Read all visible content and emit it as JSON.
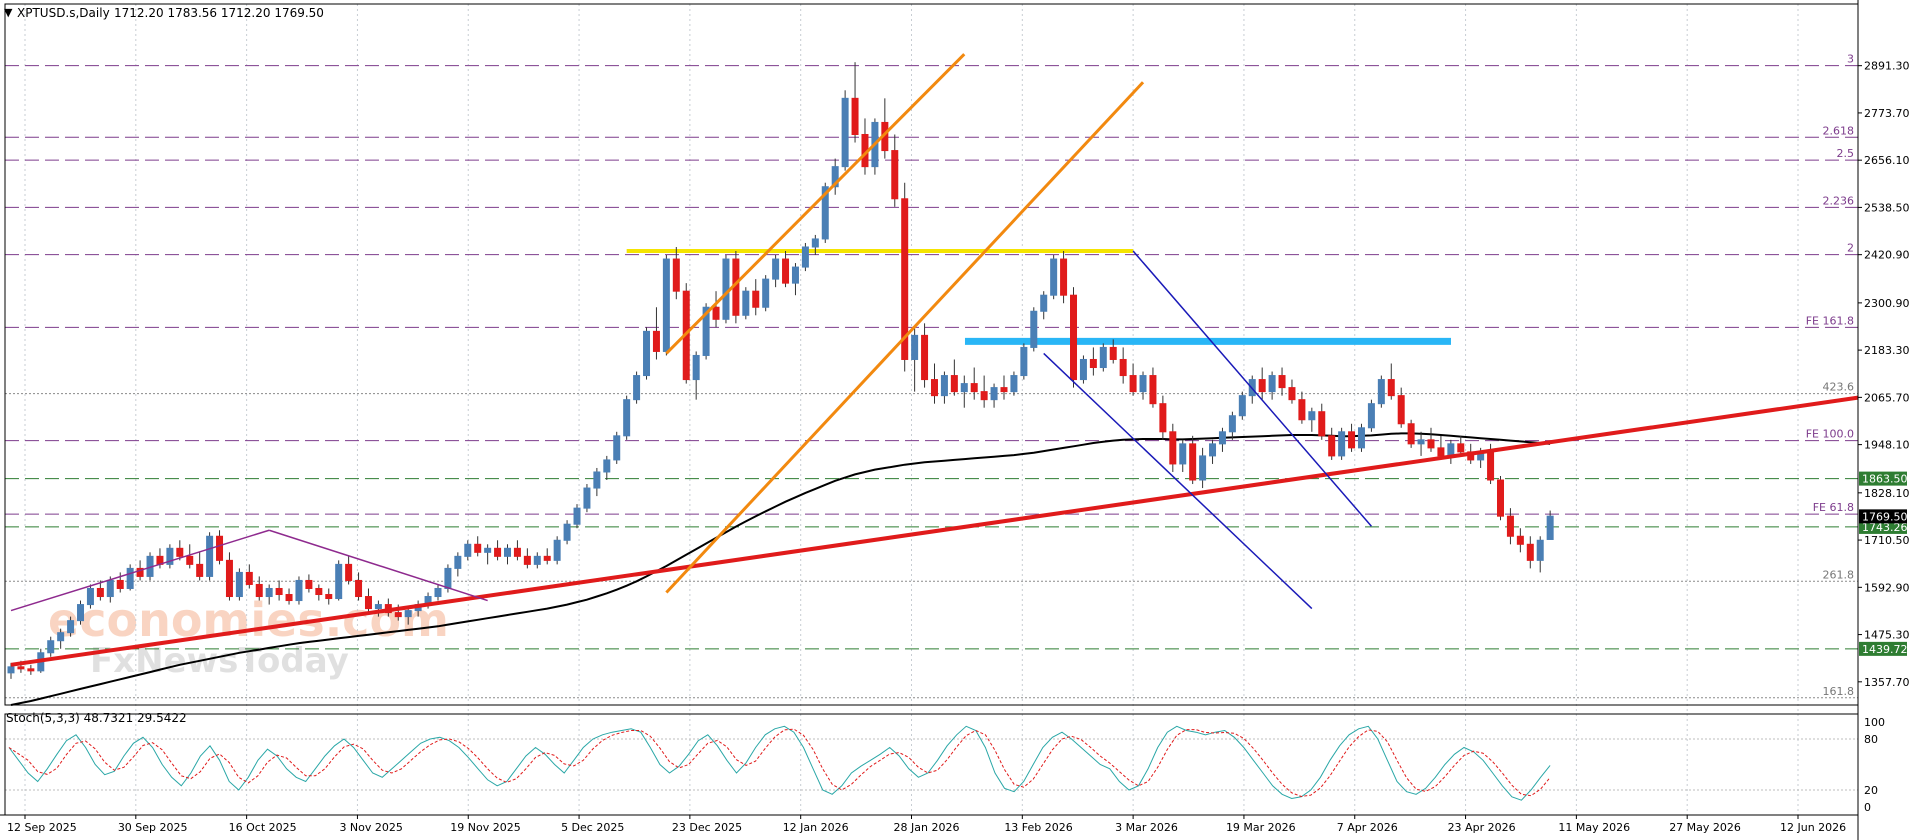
{
  "header": {
    "symbol": "XPTUSD.s,Daily",
    "ohlc": "1712.20 1783.56 1712.20 1769.50"
  },
  "watermark": {
    "line1": "economies.com",
    "line2": "FxNewsToday"
  },
  "indicator": {
    "label": "Stoch(5,3,3) 48.7321 29.5422"
  },
  "chart_data": {
    "type": "line",
    "instrument": "XPTUSD.s",
    "timeframe": "Daily",
    "price_axis": {
      "ylim": [
        1300,
        3000
      ],
      "ticks": [
        "2891.30",
        "2773.70",
        "2656.10",
        "2538.50",
        "2420.90",
        "2300.90",
        "2183.30",
        "2065.70",
        "1948.10",
        "1828.10",
        "1710.50",
        "1592.90",
        "1475.30",
        "1357.70"
      ]
    },
    "date_labels": [
      "12 Sep 2025",
      "30 Sep 2025",
      "16 Oct 2025",
      "3 Nov 2025",
      "19 Nov 2025",
      "5 Dec 2025",
      "23 Dec 2025",
      "12 Jan 2026",
      "28 Jan 2026",
      "13 Feb 2026",
      "3 Mar 2026",
      "19 Mar 2026",
      "7 Apr 2026",
      "23 Apr 2026",
      "11 May 2026",
      "27 May 2026",
      "12 Jun 2026"
    ],
    "fib_levels": [
      {
        "label": "3",
        "value": 2891.3
      },
      {
        "label": "2.618",
        "value": 2713.0
      },
      {
        "label": "2.5",
        "value": 2656.1
      },
      {
        "label": "2.236",
        "value": 2538.5
      },
      {
        "label": "2",
        "value": 2420.9
      },
      {
        "label": "FE 161.8",
        "value": 2240.0
      },
      {
        "label": "423.6",
        "value": 2075.0
      },
      {
        "label": "FE 100.0",
        "value": 1958.0
      },
      {
        "label": "FE 61.8",
        "value": 1775.0
      },
      {
        "label": "261.8",
        "value": 1608.0
      },
      {
        "label": "161.8",
        "value": 1318.0
      }
    ],
    "horizontal_levels": [
      {
        "label": "1863.50",
        "value": 1863.5,
        "color": "#2e7d32"
      },
      {
        "label": "1743.26",
        "value": 1743.26,
        "color": "#2e7d32"
      },
      {
        "label": "1439.72",
        "value": 1439.72,
        "color": "#2e7d32"
      }
    ],
    "current_price": {
      "label": "1769.50",
      "value": 1769.5
    },
    "highlight_levels": [
      {
        "name": "yellow-resistance",
        "value": 2430,
        "color": "#f5e400"
      },
      {
        "name": "blue-resistance",
        "value": 2205,
        "color": "#29b6f6"
      }
    ],
    "candles": [
      [
        1380,
        1405,
        1365,
        1395
      ],
      [
        1395,
        1410,
        1380,
        1390
      ],
      [
        1390,
        1400,
        1375,
        1385
      ],
      [
        1385,
        1440,
        1380,
        1430
      ],
      [
        1430,
        1470,
        1420,
        1460
      ],
      [
        1460,
        1490,
        1440,
        1480
      ],
      [
        1480,
        1520,
        1470,
        1510
      ],
      [
        1510,
        1560,
        1500,
        1550
      ],
      [
        1550,
        1600,
        1540,
        1590
      ],
      [
        1590,
        1610,
        1560,
        1570
      ],
      [
        1570,
        1620,
        1555,
        1610
      ],
      [
        1610,
        1630,
        1580,
        1590
      ],
      [
        1590,
        1650,
        1585,
        1640
      ],
      [
        1640,
        1660,
        1610,
        1620
      ],
      [
        1620,
        1680,
        1610,
        1670
      ],
      [
        1670,
        1690,
        1640,
        1650
      ],
      [
        1650,
        1700,
        1640,
        1690
      ],
      [
        1690,
        1710,
        1660,
        1670
      ],
      [
        1670,
        1700,
        1640,
        1650
      ],
      [
        1650,
        1680,
        1610,
        1620
      ],
      [
        1620,
        1730,
        1610,
        1720
      ],
      [
        1720,
        1735,
        1650,
        1660
      ],
      [
        1660,
        1680,
        1560,
        1570
      ],
      [
        1570,
        1640,
        1560,
        1630
      ],
      [
        1630,
        1650,
        1590,
        1600
      ],
      [
        1600,
        1620,
        1560,
        1570
      ],
      [
        1570,
        1600,
        1550,
        1590
      ],
      [
        1590,
        1610,
        1560,
        1575
      ],
      [
        1575,
        1590,
        1550,
        1560
      ],
      [
        1560,
        1620,
        1550,
        1610
      ],
      [
        1610,
        1625,
        1580,
        1590
      ],
      [
        1590,
        1600,
        1560,
        1575
      ],
      [
        1575,
        1590,
        1550,
        1565
      ],
      [
        1565,
        1660,
        1560,
        1650
      ],
      [
        1650,
        1670,
        1600,
        1610
      ],
      [
        1610,
        1630,
        1560,
        1570
      ],
      [
        1570,
        1590,
        1530,
        1540
      ],
      [
        1540,
        1560,
        1520,
        1550
      ],
      [
        1550,
        1565,
        1520,
        1530
      ],
      [
        1530,
        1550,
        1510,
        1520
      ],
      [
        1520,
        1540,
        1500,
        1535
      ],
      [
        1535,
        1560,
        1520,
        1550
      ],
      [
        1550,
        1580,
        1540,
        1570
      ],
      [
        1570,
        1600,
        1560,
        1590
      ],
      [
        1590,
        1650,
        1580,
        1640
      ],
      [
        1640,
        1680,
        1620,
        1670
      ],
      [
        1670,
        1710,
        1660,
        1700
      ],
      [
        1700,
        1720,
        1670,
        1680
      ],
      [
        1680,
        1700,
        1650,
        1690
      ],
      [
        1690,
        1710,
        1660,
        1670
      ],
      [
        1670,
        1700,
        1650,
        1690
      ],
      [
        1690,
        1710,
        1660,
        1670
      ],
      [
        1670,
        1690,
        1640,
        1650
      ],
      [
        1650,
        1680,
        1640,
        1670
      ],
      [
        1670,
        1690,
        1650,
        1660
      ],
      [
        1660,
        1720,
        1650,
        1710
      ],
      [
        1710,
        1760,
        1700,
        1750
      ],
      [
        1750,
        1800,
        1740,
        1790
      ],
      [
        1790,
        1850,
        1780,
        1840
      ],
      [
        1840,
        1890,
        1820,
        1880
      ],
      [
        1880,
        1920,
        1860,
        1910
      ],
      [
        1910,
        1980,
        1900,
        1970
      ],
      [
        1970,
        2070,
        1960,
        2060
      ],
      [
        2060,
        2130,
        2050,
        2120
      ],
      [
        2120,
        2240,
        2110,
        2230
      ],
      [
        2230,
        2290,
        2160,
        2180
      ],
      [
        2180,
        2420,
        2170,
        2410
      ],
      [
        2410,
        2440,
        2310,
        2330
      ],
      [
        2330,
        2350,
        2100,
        2110
      ],
      [
        2110,
        2180,
        2060,
        2170
      ],
      [
        2170,
        2300,
        2160,
        2290
      ],
      [
        2290,
        2330,
        2240,
        2260
      ],
      [
        2260,
        2420,
        2250,
        2410
      ],
      [
        2410,
        2430,
        2250,
        2270
      ],
      [
        2270,
        2340,
        2260,
        2330
      ],
      [
        2330,
        2360,
        2270,
        2290
      ],
      [
        2290,
        2370,
        2280,
        2360
      ],
      [
        2360,
        2420,
        2340,
        2410
      ],
      [
        2410,
        2430,
        2340,
        2350
      ],
      [
        2350,
        2400,
        2320,
        2390
      ],
      [
        2390,
        2450,
        2380,
        2440
      ],
      [
        2440,
        2470,
        2420,
        2460
      ],
      [
        2460,
        2600,
        2450,
        2590
      ],
      [
        2590,
        2660,
        2570,
        2640
      ],
      [
        2640,
        2830,
        2630,
        2810
      ],
      [
        2810,
        2900,
        2700,
        2720
      ],
      [
        2720,
        2760,
        2620,
        2640
      ],
      [
        2640,
        2760,
        2620,
        2750
      ],
      [
        2750,
        2810,
        2660,
        2680
      ],
      [
        2680,
        2720,
        2540,
        2560
      ],
      [
        2560,
        2600,
        2130,
        2160
      ],
      [
        2160,
        2240,
        2080,
        2220
      ],
      [
        2220,
        2250,
        2090,
        2110
      ],
      [
        2110,
        2150,
        2050,
        2070
      ],
      [
        2070,
        2130,
        2050,
        2120
      ],
      [
        2120,
        2160,
        2070,
        2080
      ],
      [
        2080,
        2120,
        2040,
        2100
      ],
      [
        2100,
        2140,
        2060,
        2080
      ],
      [
        2080,
        2120,
        2040,
        2060
      ],
      [
        2060,
        2100,
        2040,
        2090
      ],
      [
        2090,
        2120,
        2060,
        2080
      ],
      [
        2080,
        2130,
        2070,
        2120
      ],
      [
        2120,
        2200,
        2110,
        2190
      ],
      [
        2190,
        2290,
        2180,
        2280
      ],
      [
        2280,
        2330,
        2260,
        2320
      ],
      [
        2320,
        2420,
        2310,
        2410
      ],
      [
        2410,
        2430,
        2300,
        2320
      ],
      [
        2320,
        2340,
        2090,
        2110
      ],
      [
        2110,
        2170,
        2100,
        2160
      ],
      [
        2160,
        2190,
        2120,
        2140
      ],
      [
        2140,
        2200,
        2130,
        2190
      ],
      [
        2190,
        2210,
        2150,
        2160
      ],
      [
        2160,
        2190,
        2100,
        2120
      ],
      [
        2120,
        2150,
        2070,
        2080
      ],
      [
        2080,
        2130,
        2060,
        2120
      ],
      [
        2120,
        2140,
        2040,
        2050
      ],
      [
        2050,
        2070,
        1960,
        1980
      ],
      [
        1980,
        2000,
        1880,
        1900
      ],
      [
        1900,
        1960,
        1880,
        1950
      ],
      [
        1950,
        1970,
        1850,
        1860
      ],
      [
        1860,
        1940,
        1840,
        1920
      ],
      [
        1920,
        1960,
        1900,
        1950
      ],
      [
        1950,
        1990,
        1930,
        1980
      ],
      [
        1980,
        2030,
        1960,
        2020
      ],
      [
        2020,
        2080,
        2010,
        2070
      ],
      [
        2070,
        2120,
        2050,
        2110
      ],
      [
        2110,
        2140,
        2060,
        2080
      ],
      [
        2080,
        2130,
        2060,
        2120
      ],
      [
        2120,
        2140,
        2070,
        2090
      ],
      [
        2090,
        2110,
        2050,
        2060
      ],
      [
        2060,
        2080,
        2000,
        2010
      ],
      [
        2010,
        2040,
        1980,
        2030
      ],
      [
        2030,
        2050,
        1960,
        1970
      ],
      [
        1970,
        1990,
        1910,
        1920
      ],
      [
        1920,
        1990,
        1910,
        1980
      ],
      [
        1980,
        2000,
        1930,
        1940
      ],
      [
        1940,
        2000,
        1930,
        1990
      ],
      [
        1990,
        2060,
        1980,
        2050
      ],
      [
        2050,
        2120,
        2040,
        2110
      ],
      [
        2110,
        2150,
        2060,
        2070
      ],
      [
        2070,
        2090,
        1990,
        2000
      ],
      [
        2000,
        2010,
        1940,
        1950
      ],
      [
        1950,
        1980,
        1920,
        1960
      ],
      [
        1960,
        1990,
        1930,
        1940
      ],
      [
        1940,
        1970,
        1910,
        1920
      ],
      [
        1920,
        1960,
        1900,
        1950
      ],
      [
        1950,
        1970,
        1920,
        1930
      ],
      [
        1930,
        1950,
        1900,
        1910
      ],
      [
        1910,
        1940,
        1890,
        1930
      ],
      [
        1930,
        1950,
        1850,
        1860
      ],
      [
        1860,
        1870,
        1760,
        1770
      ],
      [
        1770,
        1790,
        1700,
        1720
      ],
      [
        1720,
        1740,
        1680,
        1700
      ],
      [
        1700,
        1720,
        1640,
        1660
      ],
      [
        1660,
        1720,
        1630,
        1710
      ],
      [
        1712,
        1784,
        1712,
        1770
      ]
    ],
    "sma": [
      1300,
      1305,
      1310,
      1316,
      1322,
      1328,
      1334,
      1340,
      1346,
      1352,
      1358,
      1364,
      1370,
      1376,
      1382,
      1388,
      1394,
      1400,
      1405,
      1410,
      1415,
      1420,
      1425,
      1430,
      1434,
      1438,
      1442,
      1446,
      1450,
      1454,
      1457,
      1460,
      1463,
      1466,
      1469,
      1472,
      1475,
      1478,
      1481,
      1484,
      1487,
      1490,
      1493,
      1496,
      1500,
      1504,
      1508,
      1512,
      1516,
      1520,
      1524,
      1528,
      1532,
      1536,
      1540,
      1545,
      1550,
      1556,
      1562,
      1570,
      1578,
      1587,
      1597,
      1608,
      1620,
      1633,
      1646,
      1660,
      1674,
      1688,
      1702,
      1716,
      1730,
      1744,
      1757,
      1770,
      1782,
      1794,
      1806,
      1817,
      1828,
      1838,
      1848,
      1858,
      1866,
      1874,
      1880,
      1886,
      1890,
      1894,
      1898,
      1901,
      1904,
      1906,
      1908,
      1910,
      1912,
      1914,
      1916,
      1918,
      1920,
      1922,
      1925,
      1928,
      1932,
      1936,
      1940,
      1944,
      1948,
      1952,
      1955,
      1958,
      1960,
      1961,
      1962,
      1962,
      1962,
      1961,
      1961,
      1962,
      1963,
      1964,
      1965,
      1966,
      1967,
      1968,
      1969,
      1970,
      1971,
      1972,
      1972,
      1972,
      1971,
      1970,
      1969,
      1969,
      1970,
      1971,
      1973,
      1975,
      1976,
      1976,
      1975,
      1974,
      1972,
      1970,
      1968,
      1966,
      1964,
      1962,
      1960,
      1958,
      1956,
      1954,
      1952,
      1950
    ],
    "stochastic": {
      "name": "Stoch(5,3,3)",
      "k": 48.7321,
      "d": 29.5422,
      "ylim": [
        0,
        100
      ],
      "levels": [
        80,
        20
      ],
      "tick_labels": [
        "100",
        "80",
        "20",
        "0"
      ],
      "k_series": [
        70,
        55,
        40,
        30,
        45,
        62,
        78,
        85,
        70,
        50,
        38,
        42,
        60,
        75,
        82,
        70,
        50,
        35,
        25,
        40,
        60,
        72,
        55,
        30,
        20,
        35,
        55,
        68,
        60,
        45,
        35,
        30,
        45,
        60,
        72,
        80,
        70,
        55,
        40,
        35,
        45,
        55,
        65,
        75,
        80,
        82,
        78,
        70,
        58,
        45,
        32,
        25,
        30,
        45,
        60,
        70,
        62,
        50,
        40,
        55,
        70,
        80,
        85,
        88,
        90,
        92,
        88,
        70,
        50,
        40,
        48,
        62,
        78,
        85,
        72,
        55,
        40,
        52,
        70,
        85,
        92,
        95,
        88,
        70,
        45,
        20,
        15,
        25,
        40,
        48,
        55,
        62,
        70,
        60,
        45,
        35,
        40,
        55,
        72,
        85,
        95,
        90,
        70,
        40,
        22,
        18,
        30,
        50,
        70,
        82,
        88,
        80,
        70,
        60,
        50,
        45,
        30,
        20,
        25,
        45,
        70,
        88,
        95,
        90,
        88,
        85,
        88,
        90,
        82,
        70,
        55,
        40,
        25,
        15,
        10,
        12,
        20,
        35,
        55,
        72,
        85,
        92,
        95,
        80,
        55,
        30,
        18,
        15,
        22,
        35,
        50,
        62,
        70,
        65,
        55,
        40,
        25,
        12,
        8,
        20,
        35,
        49
      ]
    },
    "trendlines": [
      {
        "name": "uptrend-red",
        "from": [
          0,
          1400
        ],
        "to": [
          165,
          1990
        ],
        "color": "#e01b1b"
      },
      {
        "name": "channel-upper",
        "from": [
          66,
          2175
        ],
        "to": [
          96,
          2920
        ],
        "color": "#f2890f"
      },
      {
        "name": "channel-lower",
        "from": [
          66,
          1580
        ],
        "to": [
          114,
          2850
        ],
        "color": "#f2890f"
      },
      {
        "name": "down-channel-upper",
        "from": [
          113,
          2430
        ],
        "to": [
          137,
          1745
        ],
        "color": "#1a1ab8"
      },
      {
        "name": "down-channel-lower",
        "from": [
          104,
          2175
        ],
        "to": [
          131,
          1540
        ],
        "color": "#1a1ab8"
      },
      {
        "name": "triangle-left",
        "from": [
          0,
          1535
        ],
        "to": [
          26,
          1735
        ],
        "color": "#8e2a8e"
      },
      {
        "name": "triangle-right",
        "from": [
          26,
          1735
        ],
        "to": [
          48,
          1560
        ],
        "color": "#8e2a8e"
      }
    ]
  }
}
